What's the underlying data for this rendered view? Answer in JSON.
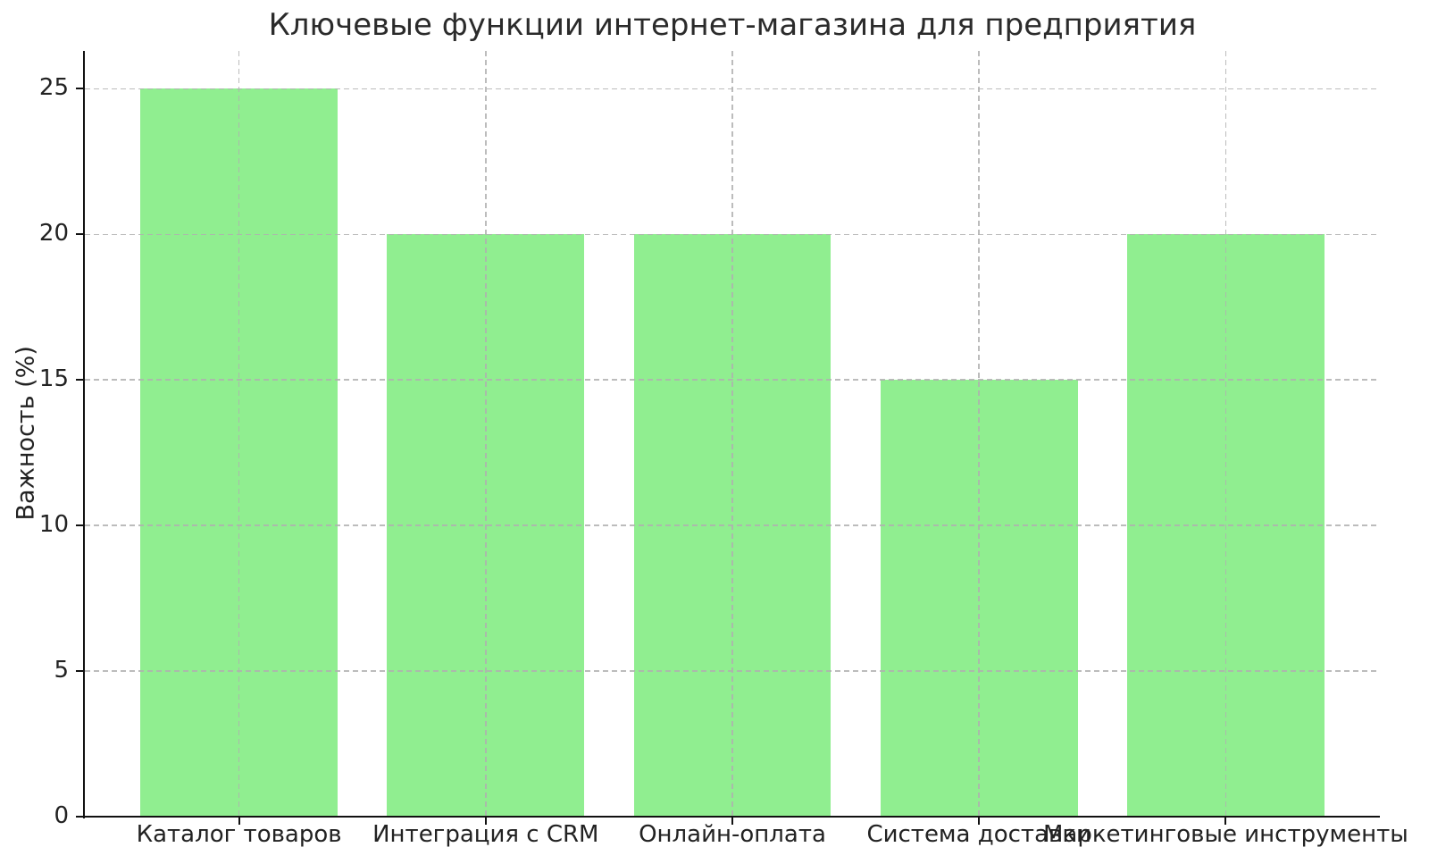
{
  "chart_data": {
    "type": "bar",
    "title": "Ключевые функции интернет-магазина для предприятия",
    "ylabel": "Важность (%)",
    "xlabel": "",
    "categories": [
      "Каталог товаров",
      "Интеграция с CRM",
      "Онлайн-оплата",
      "Система доставки",
      "Маркетинговые инструменты"
    ],
    "values": [
      25,
      20,
      20,
      15,
      20
    ],
    "yticks": [
      0,
      5,
      10,
      15,
      20,
      25
    ],
    "ylim": [
      0,
      26.3
    ],
    "grid": "dashed, horizontal and vertical, drawn above bars",
    "legend": "none",
    "style": {
      "bar_color": "#90EE90",
      "grid_color": "#b0b0b0",
      "text_color": "#222222",
      "spine_color": "#111111",
      "background": "#ffffff"
    }
  }
}
